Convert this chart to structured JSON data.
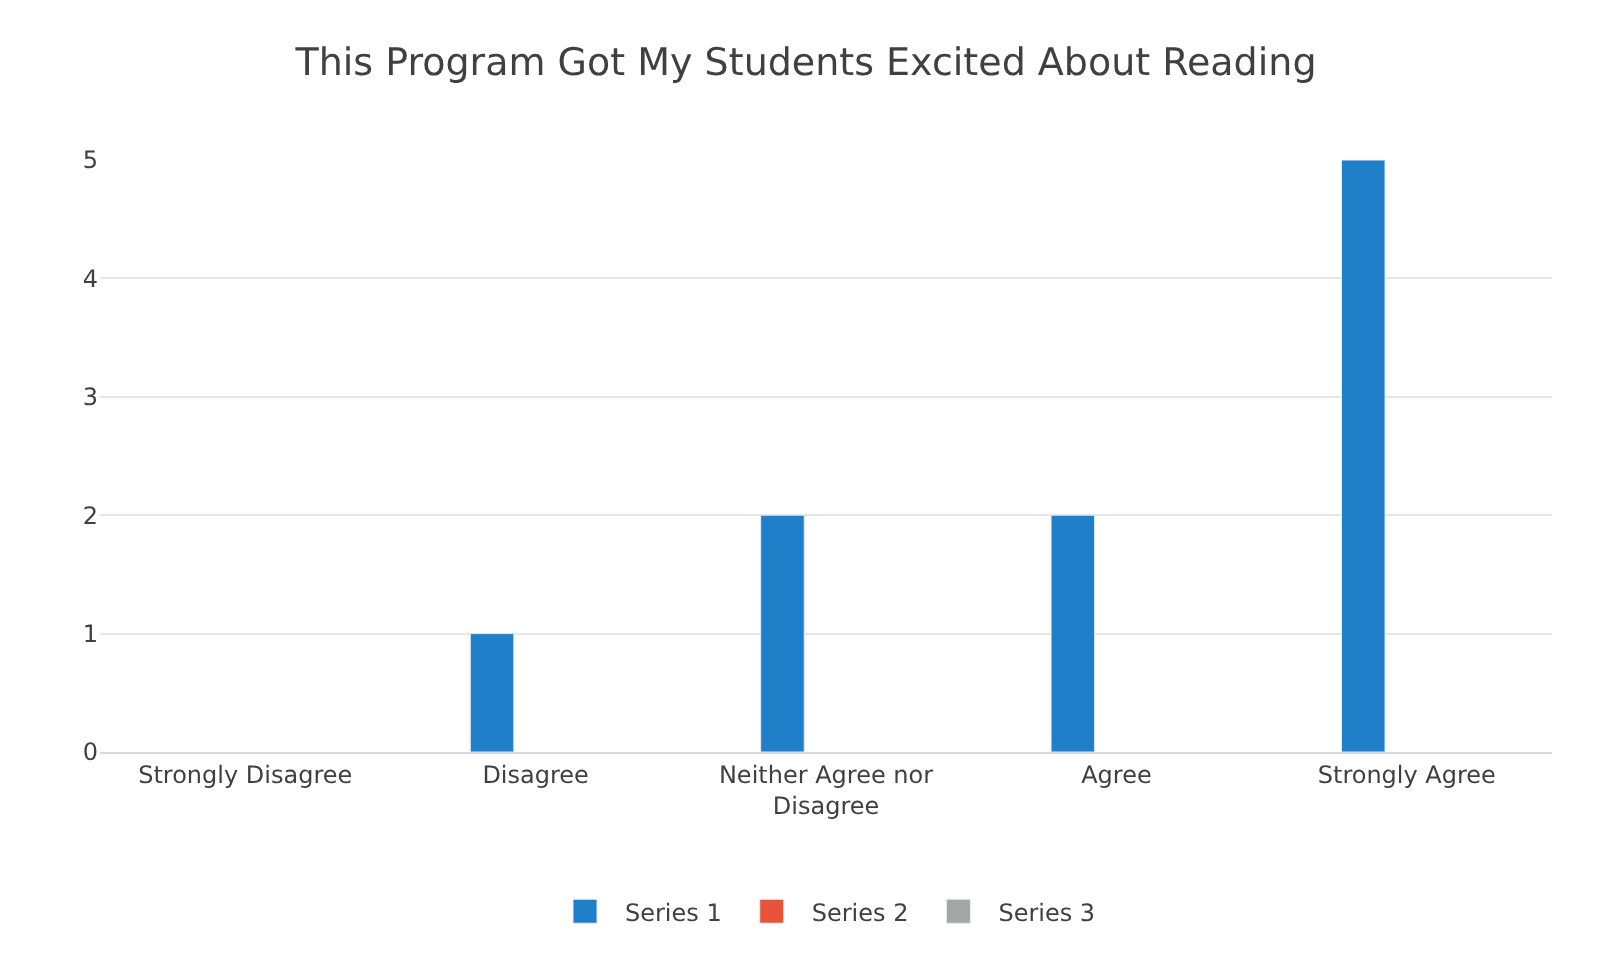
{
  "chart_data": {
    "type": "bar",
    "title": "This Program Got My Students Excited About Reading",
    "categories": [
      "Strongly Disagree",
      "Disagree",
      "Neither Agree nor Disagree",
      "Agree",
      "Strongly Agree"
    ],
    "series": [
      {
        "name": "Series 1",
        "color": "#1f7fc8",
        "values": [
          null,
          1,
          2,
          2,
          5
        ]
      },
      {
        "name": "Series 2",
        "color": "#e8533a",
        "values": [
          null,
          null,
          null,
          null,
          null
        ]
      },
      {
        "name": "Series 3",
        "color": "#a5a5a5",
        "values": [
          null,
          null,
          null,
          null,
          null
        ]
      }
    ],
    "ylim": [
      0,
      5
    ],
    "yticks": [
      0,
      1,
      2,
      3,
      4,
      5
    ],
    "grid": "y",
    "legend": "bottom"
  }
}
